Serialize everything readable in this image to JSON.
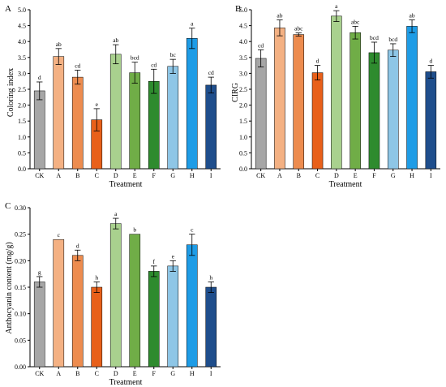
{
  "colors": {
    "CK": "#a6a6a6",
    "A": "#f4b183",
    "B": "#ed8c4f",
    "C": "#e8601a",
    "D": "#a9d18e",
    "E": "#70ad47",
    "F": "#2e8b2e",
    "G": "#8ec6e6",
    "H": "#1e9ce6",
    "I": "#1f4e8c"
  },
  "chart_data": [
    {
      "type": "bar",
      "panel": "A",
      "xlabel": "Treatment",
      "ylabel": "Coloring index",
      "categories": [
        "CK",
        "A",
        "B",
        "C",
        "D",
        "E",
        "F",
        "G",
        "H",
        "I"
      ],
      "values": [
        2.45,
        3.53,
        2.88,
        1.54,
        3.6,
        3.02,
        2.75,
        3.22,
        4.1,
        2.63
      ],
      "errors": [
        0.28,
        0.25,
        0.22,
        0.35,
        0.3,
        0.33,
        0.38,
        0.22,
        0.32,
        0.25
      ],
      "labels": [
        "d",
        "ab",
        "cd",
        "e",
        "ab",
        "bcd",
        "cd",
        "bc",
        "a",
        "cd"
      ],
      "ylim": [
        0,
        5.0
      ],
      "yticks": [
        0.0,
        0.5,
        1.0,
        1.5,
        2.0,
        2.5,
        3.0,
        3.5,
        4.0,
        4.5,
        5.0
      ],
      "ytick_labels": [
        "0.0",
        "0.5",
        "1.0",
        "1.5",
        "2.0",
        "2.5",
        "3.0",
        "3.5",
        "4.0",
        "4.5",
        "5.0"
      ],
      "grid": false
    },
    {
      "type": "bar",
      "panel": "B",
      "xlabel": "Treatment",
      "ylabel": "CIRG",
      "categories": [
        "CK",
        "A",
        "B",
        "C",
        "D",
        "E",
        "F",
        "G",
        "H",
        "I"
      ],
      "values": [
        3.47,
        4.43,
        4.22,
        3.02,
        4.8,
        4.28,
        3.65,
        3.73,
        4.48,
        3.05
      ],
      "errors": [
        0.27,
        0.25,
        0.05,
        0.23,
        0.17,
        0.2,
        0.33,
        0.2,
        0.2,
        0.2
      ],
      "labels": [
        "cd",
        "ab",
        "abc",
        "d",
        "a",
        "abc",
        "bcd",
        "bcd",
        "ab",
        "d"
      ],
      "ylim": [
        0,
        5.0
      ],
      "yticks": [
        0.0,
        0.5,
        1.0,
        1.5,
        2.0,
        2.5,
        3.0,
        3.5,
        4.0,
        4.5,
        5.0
      ],
      "ytick_labels": [
        "0.0",
        "0.5",
        "1.0",
        "1.5",
        "2.0",
        "2.5",
        "3.0",
        "3.5",
        "4.0",
        "4.5",
        "5.0"
      ],
      "grid": false
    },
    {
      "type": "bar",
      "panel": "C",
      "xlabel": "Treatment",
      "ylabel": "Anthocyanin content (mg/g)",
      "categories": [
        "CK",
        "A",
        "B",
        "C",
        "D",
        "E",
        "F",
        "G",
        "H",
        "I"
      ],
      "values": [
        0.16,
        0.24,
        0.21,
        0.15,
        0.27,
        0.25,
        0.18,
        0.19,
        0.23,
        0.15
      ],
      "errors": [
        0.01,
        0.0,
        0.01,
        0.01,
        0.01,
        0.0,
        0.01,
        0.01,
        0.02,
        0.01
      ],
      "labels": [
        "g",
        "c",
        "d",
        "h",
        "a",
        "b",
        "f",
        "e",
        "c",
        "h"
      ],
      "ylim": [
        0,
        0.3
      ],
      "yticks": [
        0.0,
        0.05,
        0.1,
        0.15,
        0.2,
        0.25,
        0.3
      ],
      "ytick_labels": [
        "0.00",
        "0.05",
        "0.10",
        "0.15",
        "0.20",
        "0.25",
        "0.30"
      ],
      "grid": false
    }
  ]
}
